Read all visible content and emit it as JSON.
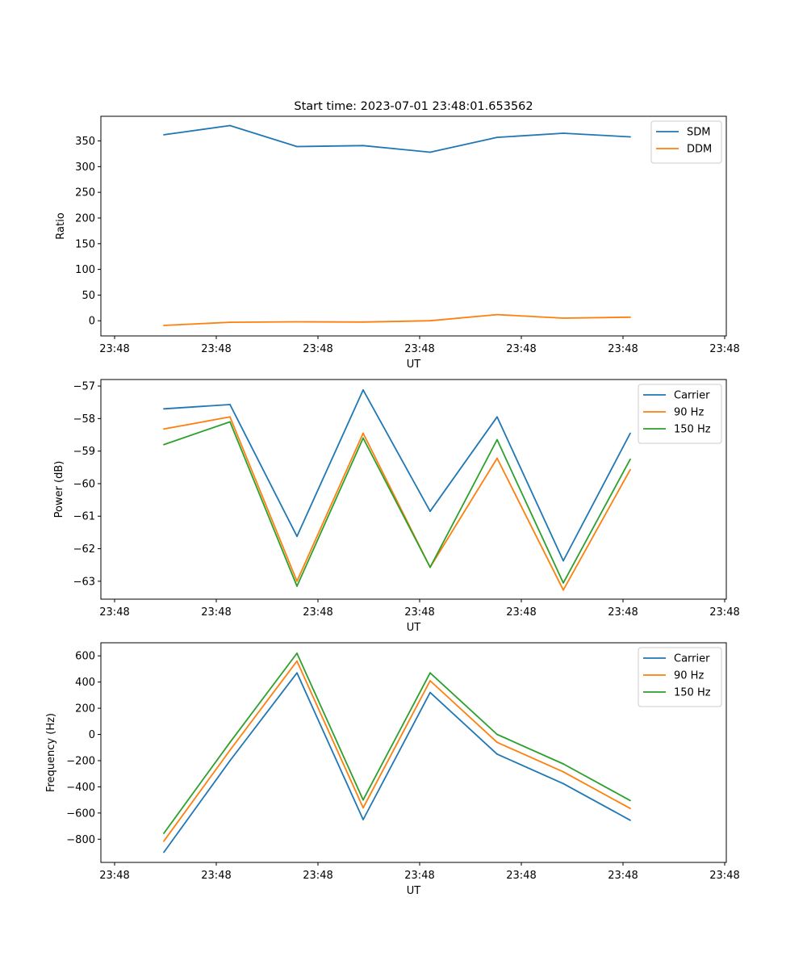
{
  "figure": {
    "title": "Start time: 2023-07-01 23:48:01.653562"
  },
  "chart_data": [
    {
      "type": "line",
      "xlabel": "UT",
      "ylabel": "Ratio",
      "x_tick_labels": [
        "23:48",
        "23:48",
        "23:48",
        "23:48",
        "23:48",
        "23:48",
        "23:48"
      ],
      "y_ticks": [
        0,
        50,
        100,
        150,
        200,
        250,
        300,
        350
      ],
      "ylim": [
        -29.5,
        398
      ],
      "grid": false,
      "legend": "top-right",
      "series": [
        {
          "name": "SDM",
          "color": "#1f77b4",
          "values": [
            362,
            380,
            339,
            341,
            328,
            357,
            365,
            358
          ]
        },
        {
          "name": "DDM",
          "color": "#ff7f0e",
          "values": [
            -9,
            -3,
            -2,
            -2.5,
            0,
            12,
            5,
            7
          ]
        }
      ]
    },
    {
      "type": "line",
      "xlabel": "UT",
      "ylabel": "Power (dB)",
      "x_tick_labels": [
        "23:48",
        "23:48",
        "23:48",
        "23:48",
        "23:48",
        "23:48",
        "23:48"
      ],
      "y_ticks": [
        -57,
        -58,
        -59,
        -60,
        -61,
        -62,
        -63
      ],
      "ylim": [
        -63.55,
        -56.8
      ],
      "grid": false,
      "legend": "top-right",
      "series": [
        {
          "name": "Carrier",
          "color": "#1f77b4",
          "values": [
            -57.7,
            -57.57,
            -61.62,
            -57.12,
            -60.85,
            -57.95,
            -62.37,
            -58.45
          ]
        },
        {
          "name": "90 Hz",
          "color": "#ff7f0e",
          "values": [
            -58.32,
            -57.95,
            -63.0,
            -58.45,
            -62.57,
            -59.22,
            -63.27,
            -59.57
          ]
        },
        {
          "name": "150 Hz",
          "color": "#2ca02c",
          "values": [
            -58.8,
            -58.1,
            -63.15,
            -58.6,
            -62.57,
            -58.65,
            -63.05,
            -59.25
          ]
        }
      ]
    },
    {
      "type": "line",
      "xlabel": "UT",
      "ylabel": "Frequency (Hz)",
      "x_tick_labels": [
        "23:48",
        "23:48",
        "23:48",
        "23:48",
        "23:48",
        "23:48",
        "23:48"
      ],
      "y_ticks": [
        -800,
        -600,
        -400,
        -200,
        0,
        200,
        400,
        600
      ],
      "ylim": [
        -977,
        700
      ],
      "grid": false,
      "legend": "top-right",
      "series": [
        {
          "name": "Carrier",
          "color": "#1f77b4",
          "values": [
            -900,
            -200,
            470,
            -650,
            320,
            -150,
            -375,
            -655
          ]
        },
        {
          "name": "90 Hz",
          "color": "#ff7f0e",
          "values": [
            -815,
            -120,
            560,
            -560,
            410,
            -60,
            -285,
            -565
          ]
        },
        {
          "name": "150 Hz",
          "color": "#2ca02c",
          "values": [
            -755,
            -60,
            620,
            -500,
            470,
            0,
            -225,
            -505
          ]
        }
      ]
    }
  ]
}
